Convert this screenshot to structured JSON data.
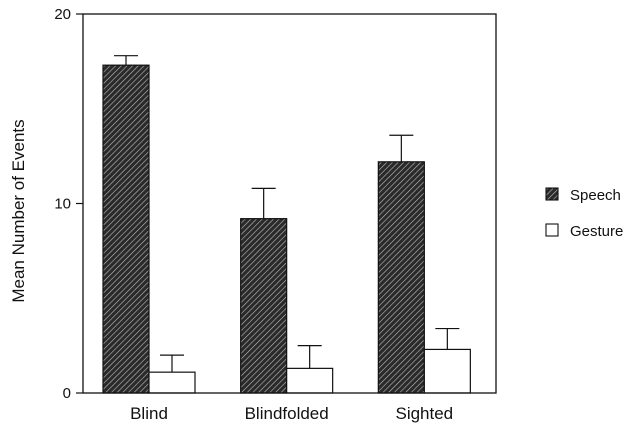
{
  "chart_data": {
    "type": "bar",
    "title": "",
    "xlabel": "",
    "ylabel": "Mean Number of Events",
    "ylim": [
      0,
      20
    ],
    "yticks": [
      0,
      10,
      20
    ],
    "grid": false,
    "legend_position": "right",
    "categories": [
      "Blind",
      "Blindfolded",
      "Sighted"
    ],
    "series": [
      {
        "name": "Speech",
        "pattern": "diagonal-hatch",
        "color": "#2a2a2a",
        "values": [
          17.3,
          9.2,
          12.2
        ],
        "error": [
          0.5,
          1.6,
          1.4
        ]
      },
      {
        "name": "Gesture",
        "pattern": "solid",
        "color": "#ffffff",
        "values": [
          1.1,
          1.3,
          2.3
        ],
        "error": [
          0.9,
          1.2,
          1.1
        ]
      }
    ]
  }
}
